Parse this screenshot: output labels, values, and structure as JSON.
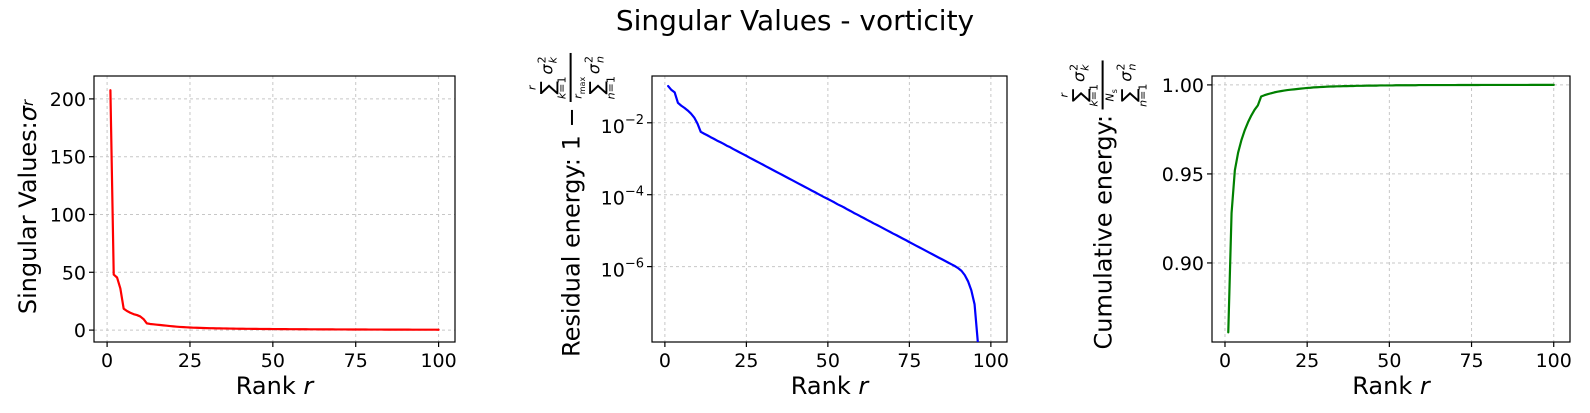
{
  "title": "Singular Values - vorticity",
  "figure": {
    "background": "#ffffff",
    "grid_color": "#c7c7c7",
    "spine_color": "#000000"
  },
  "chart_data": [
    {
      "id": "singular-values",
      "type": "line",
      "line_color": "#ff0000",
      "yscale": "linear",
      "xlabel": "Rank",
      "xlabel_var": "r",
      "ylabel_prefix": "Singular Values: ",
      "ylabel_sigma": "σ",
      "ylabel_sigma_sub": "r",
      "grid": true,
      "xlim": [
        -3.95,
        104.95
      ],
      "ylim": [
        -10.3,
        219.8
      ],
      "x_ticks": [
        0,
        25,
        50,
        75,
        100
      ],
      "y_ticks": [
        {
          "value": 0,
          "label": "0"
        },
        {
          "value": 50,
          "label": "50"
        },
        {
          "value": 100,
          "label": "100"
        },
        {
          "value": 150,
          "label": "150"
        },
        {
          "value": 200,
          "label": "200"
        }
      ],
      "x": [
        1,
        2,
        3,
        4,
        5,
        6,
        7,
        8,
        9,
        10,
        11,
        12,
        13,
        14,
        15,
        16,
        17,
        18,
        19,
        20,
        21,
        22,
        23,
        24,
        25,
        26,
        27,
        28,
        29,
        30,
        31,
        32,
        33,
        34,
        35,
        36,
        37,
        38,
        39,
        40,
        41,
        42,
        43,
        44,
        45,
        46,
        47,
        48,
        49,
        50,
        51,
        52,
        53,
        54,
        55,
        56,
        57,
        58,
        59,
        60,
        61,
        62,
        63,
        64,
        65,
        66,
        67,
        68,
        69,
        70,
        71,
        72,
        73,
        74,
        75,
        76,
        77,
        78,
        79,
        80,
        81,
        82,
        83,
        84,
        85,
        86,
        87,
        88,
        89,
        90,
        91,
        92,
        93,
        94,
        95,
        96,
        97,
        98,
        99,
        100
      ],
      "y": [
        207.5,
        48.0,
        45.5,
        36.0,
        18.5,
        16.5,
        15.0,
        13.8,
        13.0,
        11.8,
        9.5,
        5.8,
        5.3,
        5.0,
        4.7,
        4.4,
        4.1,
        3.8,
        3.5,
        3.2,
        2.95,
        2.75,
        2.55,
        2.4,
        2.25,
        2.1,
        2.0,
        1.9,
        1.8,
        1.72,
        1.65,
        1.58,
        1.52,
        1.46,
        1.41,
        1.36,
        1.31,
        1.27,
        1.23,
        1.19,
        1.15,
        1.12,
        1.09,
        1.06,
        1.03,
        1.0,
        0.97,
        0.95,
        0.92,
        0.9,
        0.88,
        0.86,
        0.84,
        0.82,
        0.8,
        0.78,
        0.76,
        0.74,
        0.72,
        0.71,
        0.69,
        0.68,
        0.66,
        0.65,
        0.63,
        0.62,
        0.61,
        0.6,
        0.58,
        0.57,
        0.56,
        0.55,
        0.54,
        0.53,
        0.52,
        0.51,
        0.5,
        0.49,
        0.48,
        0.47,
        0.46,
        0.45,
        0.44,
        0.43,
        0.42,
        0.41,
        0.41,
        0.4,
        0.39,
        0.38,
        0.38,
        0.37,
        0.36,
        0.36,
        0.35,
        0.34,
        0.34,
        0.33,
        0.33,
        0.32
      ]
    },
    {
      "id": "residual-energy",
      "type": "line",
      "line_color": "#0000ff",
      "yscale": "log",
      "xlabel": "Rank",
      "xlabel_var": "r",
      "ylabel_prefix": "Residual energy: 1 − ",
      "formula": {
        "sum": "∑",
        "sigma": "σ",
        "sigma_sup": "2",
        "num_sup": "r",
        "num_sub_var": "k",
        "num_sub_rest": "=1",
        "num_sigma_sub": "k",
        "den_sup_var": "r",
        "den_sup_sub": "max",
        "den_sub_var": "n",
        "den_sub_rest": "=1",
        "den_sigma_sub": "n"
      },
      "grid": true,
      "xlim": [
        -3.95,
        104.95
      ],
      "ylim": [
        8e-09,
        0.2
      ],
      "x_ticks": [
        0,
        25,
        50,
        75,
        100
      ],
      "y_ticks": [
        {
          "value": 0.01,
          "base": "10",
          "exp": "−2"
        },
        {
          "value": 0.0001,
          "base": "10",
          "exp": "−4"
        },
        {
          "value": 1e-06,
          "base": "10",
          "exp": "−6"
        }
      ],
      "x": [
        1,
        2,
        3,
        4,
        5,
        6,
        7,
        8,
        9,
        10,
        11,
        12,
        13,
        14,
        15,
        16,
        17,
        18,
        19,
        20,
        21,
        22,
        23,
        24,
        25,
        26,
        27,
        28,
        29,
        30,
        31,
        32,
        33,
        34,
        35,
        36,
        37,
        38,
        39,
        40,
        41,
        42,
        43,
        44,
        45,
        46,
        47,
        48,
        49,
        50,
        51,
        52,
        53,
        54,
        55,
        56,
        57,
        58,
        59,
        60,
        61,
        62,
        63,
        64,
        65,
        66,
        67,
        68,
        69,
        70,
        71,
        72,
        73,
        74,
        75,
        76,
        77,
        78,
        79,
        80,
        81,
        82,
        83,
        84,
        85,
        86,
        87,
        88,
        89,
        90,
        91,
        92,
        93,
        94,
        95,
        96
      ],
      "y": [
        0.105,
        0.082,
        0.07,
        0.036,
        0.03,
        0.026,
        0.022,
        0.018,
        0.014,
        0.0095,
        0.0056,
        0.005,
        0.0045,
        0.004,
        0.0036,
        0.0032,
        0.0029,
        0.0026,
        0.0023,
        0.0021,
        0.00186,
        0.00167,
        0.00149,
        0.00134,
        0.0012,
        0.00107,
        0.00096,
        0.00086,
        0.00077,
        0.00069,
        0.000616,
        0.000552,
        0.000494,
        0.000442,
        0.000396,
        0.000355,
        0.000318,
        0.000284,
        0.000255,
        0.000228,
        0.000204,
        0.000183,
        0.000164,
        0.000147,
        0.000131,
        0.000118,
        0.000105,
        9.4e-05,
        8.4e-05,
        7.6e-05,
        6.8e-05,
        6.1e-05,
        5.4e-05,
        4.9e-05,
        4.4e-05,
        3.9e-05,
        3.5e-05,
        3.1e-05,
        2.8e-05,
        2.5e-05,
        2.25e-05,
        2e-05,
        1.8e-05,
        1.6e-05,
        1.45e-05,
        1.3e-05,
        1.16e-05,
        1.04e-05,
        9.3e-06,
        8.3e-06,
        7.5e-06,
        6.7e-06,
        6e-06,
        5.4e-06,
        4.8e-06,
        4.3e-06,
        3.85e-06,
        3.45e-06,
        3.1e-06,
        2.77e-06,
        2.48e-06,
        2.22e-06,
        1.99e-06,
        1.78e-06,
        1.6e-06,
        1.43e-06,
        1.28e-06,
        1.15e-06,
        1.03e-06,
        9e-07,
        7.6e-07,
        5.8e-07,
        3.9e-07,
        2.2e-07,
        9e-08,
        8e-09
      ]
    },
    {
      "id": "cumulative-energy",
      "type": "line",
      "line_color": "#008000",
      "yscale": "linear",
      "xlabel": "Rank",
      "xlabel_var": "r",
      "ylabel_prefix": "Cumulative energy: ",
      "formula": {
        "sum": "∑",
        "sigma": "σ",
        "sigma_sup": "2",
        "num_sup": "r",
        "num_sub_var": "k",
        "num_sub_rest": "=1",
        "num_sigma_sub": "k",
        "den_sup_var": "N",
        "den_sup_sub": "s",
        "den_sub_var": "n",
        "den_sub_rest": "=1",
        "den_sigma_sub": "n"
      },
      "grid": true,
      "xlim": [
        -3.95,
        104.95
      ],
      "ylim": [
        0.8556,
        1.005
      ],
      "x_ticks": [
        0,
        25,
        50,
        75,
        100
      ],
      "y_ticks": [
        {
          "value": 0.9,
          "label": "0.90"
        },
        {
          "value": 0.95,
          "label": "0.95"
        },
        {
          "value": 1.0,
          "label": "1.00"
        }
      ],
      "x": [
        1,
        2,
        3,
        4,
        5,
        6,
        7,
        8,
        9,
        10,
        11,
        12,
        13,
        14,
        15,
        16,
        17,
        18,
        19,
        20,
        21,
        22,
        23,
        24,
        25,
        26,
        27,
        28,
        29,
        30,
        31,
        32,
        33,
        34,
        35,
        36,
        37,
        38,
        39,
        40,
        41,
        42,
        43,
        44,
        45,
        46,
        47,
        48,
        49,
        50,
        51,
        52,
        53,
        54,
        55,
        56,
        57,
        58,
        59,
        60,
        61,
        62,
        63,
        64,
        65,
        66,
        67,
        68,
        69,
        70,
        71,
        72,
        73,
        74,
        75,
        76,
        77,
        78,
        79,
        80,
        81,
        82,
        83,
        84,
        85,
        86,
        87,
        88,
        89,
        90,
        91,
        92,
        93,
        94,
        95,
        96,
        97,
        98,
        99,
        100
      ],
      "y": [
        0.861,
        0.928,
        0.952,
        0.962,
        0.969,
        0.9745,
        0.979,
        0.9828,
        0.986,
        0.9885,
        0.9935,
        0.9942,
        0.9948,
        0.9953,
        0.9958,
        0.9962,
        0.9965,
        0.9968,
        0.9971,
        0.9973,
        0.9975,
        0.9977,
        0.9979,
        0.9981,
        0.9983,
        0.9984,
        0.9986,
        0.9987,
        0.9988,
        0.9989,
        0.999,
        0.9991,
        0.9991,
        0.9992,
        0.9992,
        0.9993,
        0.9993,
        0.9994,
        0.9994,
        0.9995,
        0.9995,
        0.9995,
        0.9996,
        0.9996,
        0.9996,
        0.9996,
        0.9997,
        0.9997,
        0.9997,
        0.9997,
        0.9997,
        0.9998,
        0.9998,
        0.9998,
        0.9998,
        0.9998,
        0.9998,
        0.9998,
        0.9999,
        0.9999,
        0.9999,
        0.9999,
        0.9999,
        0.9999,
        0.9999,
        0.9999,
        0.9999,
        0.9999,
        0.9999,
        0.9999,
        0.99995,
        0.99995,
        0.99995,
        0.99995,
        0.99996,
        0.99996,
        0.99996,
        0.99997,
        0.99997,
        0.99997,
        0.99998,
        0.99998,
        0.99998,
        0.99998,
        0.99998,
        0.99999,
        0.99999,
        0.99999,
        0.99999,
        0.99999,
        0.99999,
        0.99999,
        1.0,
        1.0,
        1.0,
        1.0,
        1.0,
        1.0,
        1.0,
        1.0
      ]
    }
  ]
}
